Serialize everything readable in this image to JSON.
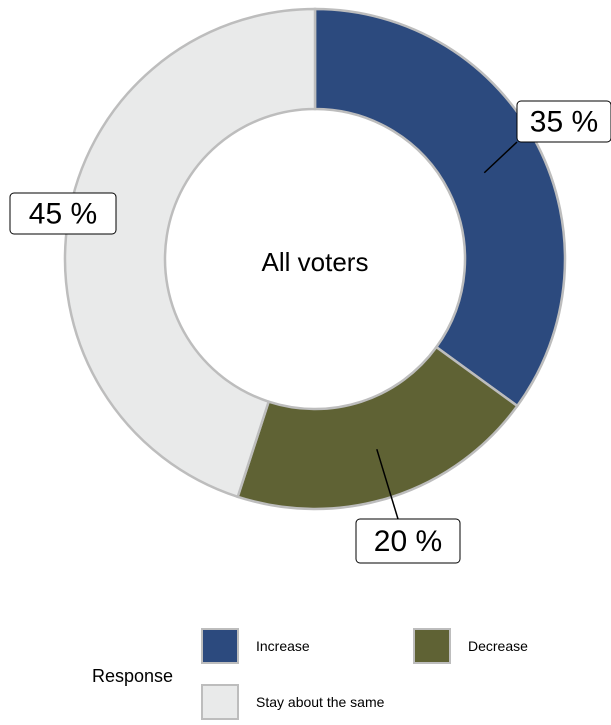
{
  "chart_data": {
    "type": "pie",
    "variant": "donut",
    "center_label": "All voters",
    "categories": [
      "Increase",
      "Decrease",
      "Stay about the same"
    ],
    "values": [
      35,
      20,
      45
    ],
    "value_labels": [
      "35 %",
      "20 %",
      "45 %"
    ],
    "colors": [
      "#2c4a7e",
      "#5f6234",
      "#e9eaea"
    ],
    "start_angle": "12 o'clock, clockwise",
    "legend": {
      "title": "Response",
      "placement": "bottom",
      "entries": [
        "Increase",
        "Decrease",
        "Stay about the same"
      ]
    }
  }
}
